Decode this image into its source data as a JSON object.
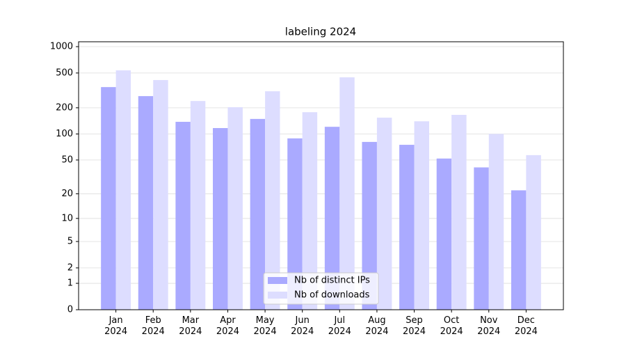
{
  "chart_data": {
    "type": "bar",
    "title": "labeling 2024",
    "categories": [
      "Jan\n2024",
      "Feb\n2024",
      "Mar\n2024",
      "Apr\n2024",
      "May\n2024",
      "Jun\n2024",
      "Jul\n2024",
      "Aug\n2024",
      "Sep\n2024",
      "Oct\n2024",
      "Nov\n2024",
      "Dec\n2024"
    ],
    "series": [
      {
        "name": "Nb of distinct IPs",
        "color": "#aaaaff",
        "values": [
          345,
          272,
          138,
          117,
          149,
          89,
          121,
          81,
          75,
          52,
          41,
          22
        ]
      },
      {
        "name": "Nb of downloads",
        "color": "#ddddff",
        "values": [
          536,
          415,
          239,
          203,
          309,
          178,
          446,
          154,
          140,
          166,
          100,
          57
        ]
      }
    ],
    "yscale": "log1p",
    "ylim": [
      0,
      1137
    ],
    "yticks": [
      0,
      1,
      2,
      5,
      10,
      20,
      50,
      100,
      200,
      500,
      1000
    ],
    "grid": true,
    "legend": "lower center"
  }
}
